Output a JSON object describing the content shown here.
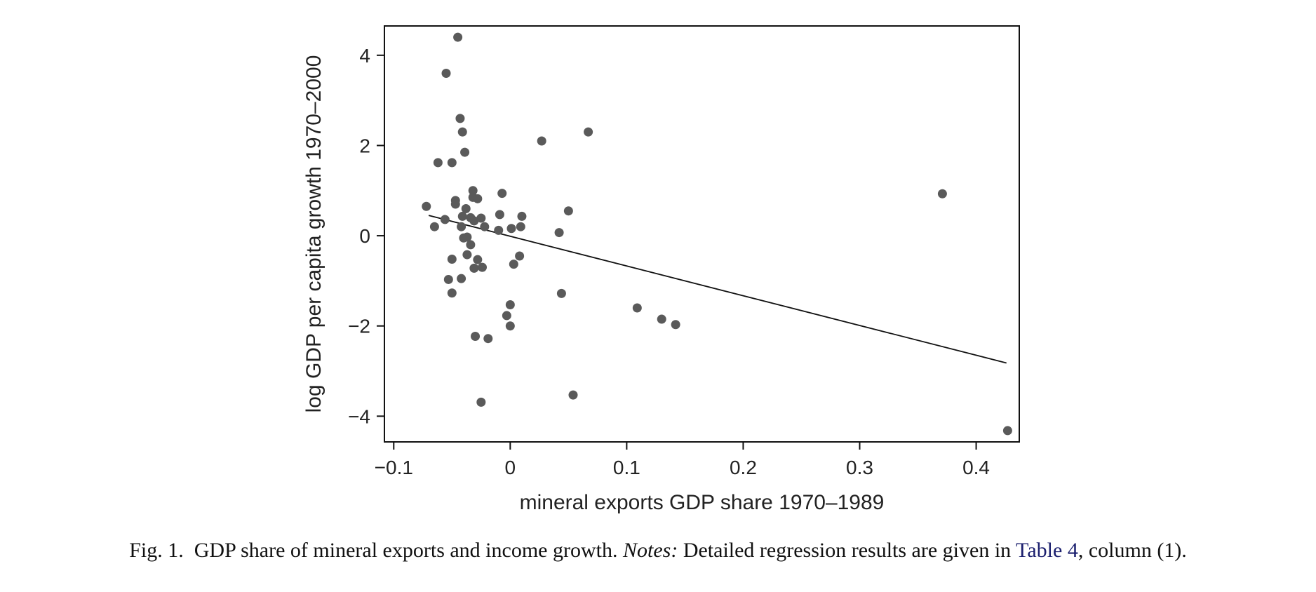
{
  "colors": {
    "point": "#5a5a5a",
    "fit_line": "#111111",
    "frame": "#111111",
    "caption_link": "#1b1f6e"
  },
  "caption": {
    "fig_label": "Fig. 1.",
    "title": "GDP share of mineral exports and income growth.",
    "notes_label": "Notes:",
    "notes_text": "Detailed regression results are given in",
    "table_ref": "Table 4",
    "tail": ", column (1)."
  },
  "chart_data": {
    "type": "scatter",
    "title": "",
    "xlabel": "mineral exports GDP share 1970–1989",
    "ylabel": "log GDP per capita growth 1970–2000",
    "xlim": [
      -0.108,
      0.437
    ],
    "ylim": [
      -4.57,
      4.65
    ],
    "xticks": [
      -0.1,
      0,
      0.1,
      0.2,
      0.3,
      0.4
    ],
    "xtick_labels": [
      "−0.1",
      "0",
      "0.1",
      "0.2",
      "0.3",
      "0.4"
    ],
    "yticks": [
      -4,
      -2,
      0,
      2,
      4
    ],
    "ytick_labels": [
      "−4",
      "−2",
      "0",
      "2",
      "4"
    ],
    "grid": false,
    "legend": "none",
    "fit_line": {
      "x": [
        -0.07,
        0.426
      ],
      "y": [
        0.45,
        -2.82
      ]
    },
    "points": [
      {
        "x": -0.045,
        "y": 4.4
      },
      {
        "x": -0.055,
        "y": 3.6
      },
      {
        "x": -0.043,
        "y": 2.6
      },
      {
        "x": -0.041,
        "y": 2.3
      },
      {
        "x": -0.039,
        "y": 1.85
      },
      {
        "x": -0.062,
        "y": 1.62
      },
      {
        "x": -0.05,
        "y": 1.62
      },
      {
        "x": -0.072,
        "y": 0.65
      },
      {
        "x": -0.047,
        "y": 0.78
      },
      {
        "x": -0.047,
        "y": 0.7
      },
      {
        "x": -0.032,
        "y": 1.0
      },
      {
        "x": -0.032,
        "y": 0.85
      },
      {
        "x": -0.028,
        "y": 0.82
      },
      {
        "x": -0.038,
        "y": 0.6
      },
      {
        "x": -0.041,
        "y": 0.43
      },
      {
        "x": -0.034,
        "y": 0.4
      },
      {
        "x": -0.031,
        "y": 0.33
      },
      {
        "x": -0.025,
        "y": 0.39
      },
      {
        "x": -0.056,
        "y": 0.36
      },
      {
        "x": -0.065,
        "y": 0.2
      },
      {
        "x": -0.042,
        "y": 0.2
      },
      {
        "x": -0.022,
        "y": 0.2
      },
      {
        "x": -0.04,
        "y": -0.05
      },
      {
        "x": -0.037,
        "y": -0.03
      },
      {
        "x": -0.034,
        "y": -0.2
      },
      {
        "x": -0.05,
        "y": -0.52
      },
      {
        "x": -0.037,
        "y": -0.42
      },
      {
        "x": -0.028,
        "y": -0.53
      },
      {
        "x": -0.031,
        "y": -0.72
      },
      {
        "x": -0.024,
        "y": -0.7
      },
      {
        "x": -0.053,
        "y": -0.97
      },
      {
        "x": -0.042,
        "y": -0.95
      },
      {
        "x": -0.05,
        "y": -1.27
      },
      {
        "x": -0.03,
        "y": -2.23
      },
      {
        "x": -0.019,
        "y": -2.28
      },
      {
        "x": -0.025,
        "y": -3.69
      },
      {
        "x": -0.007,
        "y": 0.94
      },
      {
        "x": -0.009,
        "y": 0.47
      },
      {
        "x": -0.01,
        "y": 0.12
      },
      {
        "x": 0.001,
        "y": 0.16
      },
      {
        "x": 0.01,
        "y": 0.43
      },
      {
        "x": 0.009,
        "y": 0.2
      },
      {
        "x": 0.008,
        "y": -0.45
      },
      {
        "x": 0.003,
        "y": -0.63
      },
      {
        "x": 0.0,
        "y": -1.53
      },
      {
        "x": -0.003,
        "y": -1.77
      },
      {
        "x": 0.0,
        "y": -2.0
      },
      {
        "x": 0.027,
        "y": 2.1
      },
      {
        "x": 0.067,
        "y": 2.3
      },
      {
        "x": 0.05,
        "y": 0.55
      },
      {
        "x": 0.042,
        "y": 0.07
      },
      {
        "x": 0.044,
        "y": -1.28
      },
      {
        "x": 0.054,
        "y": -3.53
      },
      {
        "x": 0.109,
        "y": -1.6
      },
      {
        "x": 0.13,
        "y": -1.85
      },
      {
        "x": 0.142,
        "y": -1.97
      },
      {
        "x": 0.371,
        "y": 0.93
      },
      {
        "x": 0.427,
        "y": -4.32
      }
    ]
  }
}
